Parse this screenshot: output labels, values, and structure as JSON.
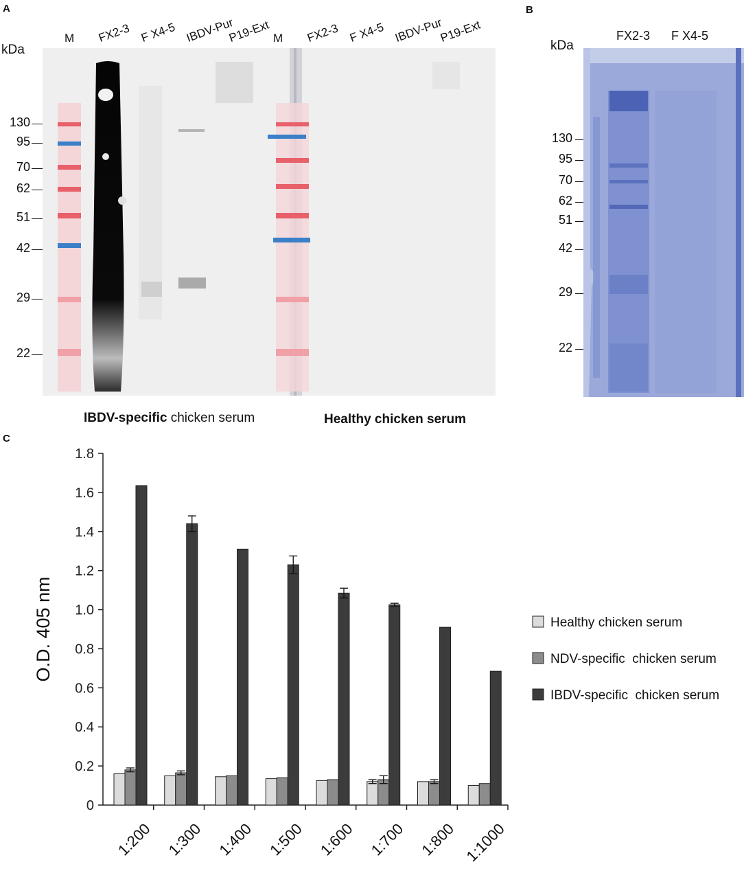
{
  "panel_a": {
    "letter": "A",
    "kda_label": "kDa",
    "lanes": [
      "M",
      "FX2-3",
      "F X4-5",
      "IBDV-Pur",
      "P19-Ext",
      "M",
      "FX2-3",
      "F X4-5",
      "IBDV-Pur",
      "P19-Ext"
    ],
    "mw_markers": [
      "130",
      "95",
      "70",
      "62",
      "51",
      "42",
      "29",
      "22"
    ],
    "caption_left_bold": "IBDV-specific",
    "caption_left_rest": " chicken serum",
    "caption_right": "Healthy chicken serum"
  },
  "panel_b": {
    "letter": "B",
    "kda_label": "kDa",
    "lanes": [
      "FX2-3",
      "F X4-5"
    ],
    "mw_markers": [
      "130",
      "95",
      "70",
      "62",
      "51",
      "42",
      "29",
      "22"
    ]
  },
  "panel_c": {
    "letter": "C"
  },
  "colors": {
    "healthy": "#dcdcdc",
    "ndv": "#8c8c8c",
    "ibdv": "#3c3c3c",
    "gel_blue": "#9aa9da",
    "marker_red": "#e8606a",
    "marker_blue": "#3a7fc8"
  },
  "chart_data": {
    "type": "bar",
    "categories": [
      "1:200",
      "1:300",
      "1:400",
      "1:500",
      "1:600",
      "1:700",
      "1:800",
      "1:1000"
    ],
    "series": [
      {
        "name": "Healthy chicken serum",
        "values": [
          0.16,
          0.15,
          0.145,
          0.135,
          0.125,
          0.12,
          0.12,
          0.1
        ],
        "errors": [
          0,
          0,
          0,
          0,
          0,
          0.01,
          0,
          0
        ]
      },
      {
        "name": "NDV-specific  chicken serum",
        "values": [
          0.18,
          0.165,
          0.15,
          0.14,
          0.13,
          0.13,
          0.12,
          0.11
        ],
        "errors": [
          0.01,
          0.01,
          0,
          0,
          0,
          0.02,
          0.01,
          0
        ]
      },
      {
        "name": "IBDV-specific  chicken serum",
        "values": [
          1.635,
          1.44,
          1.31,
          1.23,
          1.085,
          1.025,
          0.91,
          0.685
        ],
        "errors": [
          0,
          0.04,
          0,
          0.045,
          0.025,
          0.008,
          0,
          0
        ]
      }
    ],
    "title": "",
    "xlabel": "",
    "ylabel": "O.D. 405 nm",
    "ylim": [
      0,
      1.8
    ],
    "yticks": [
      "0",
      "0.2",
      "0.4",
      "0.6",
      "0.8",
      "1.0",
      "1.2",
      "1.4",
      "1.6",
      "1.8"
    ],
    "grid": false,
    "legend": "right"
  }
}
